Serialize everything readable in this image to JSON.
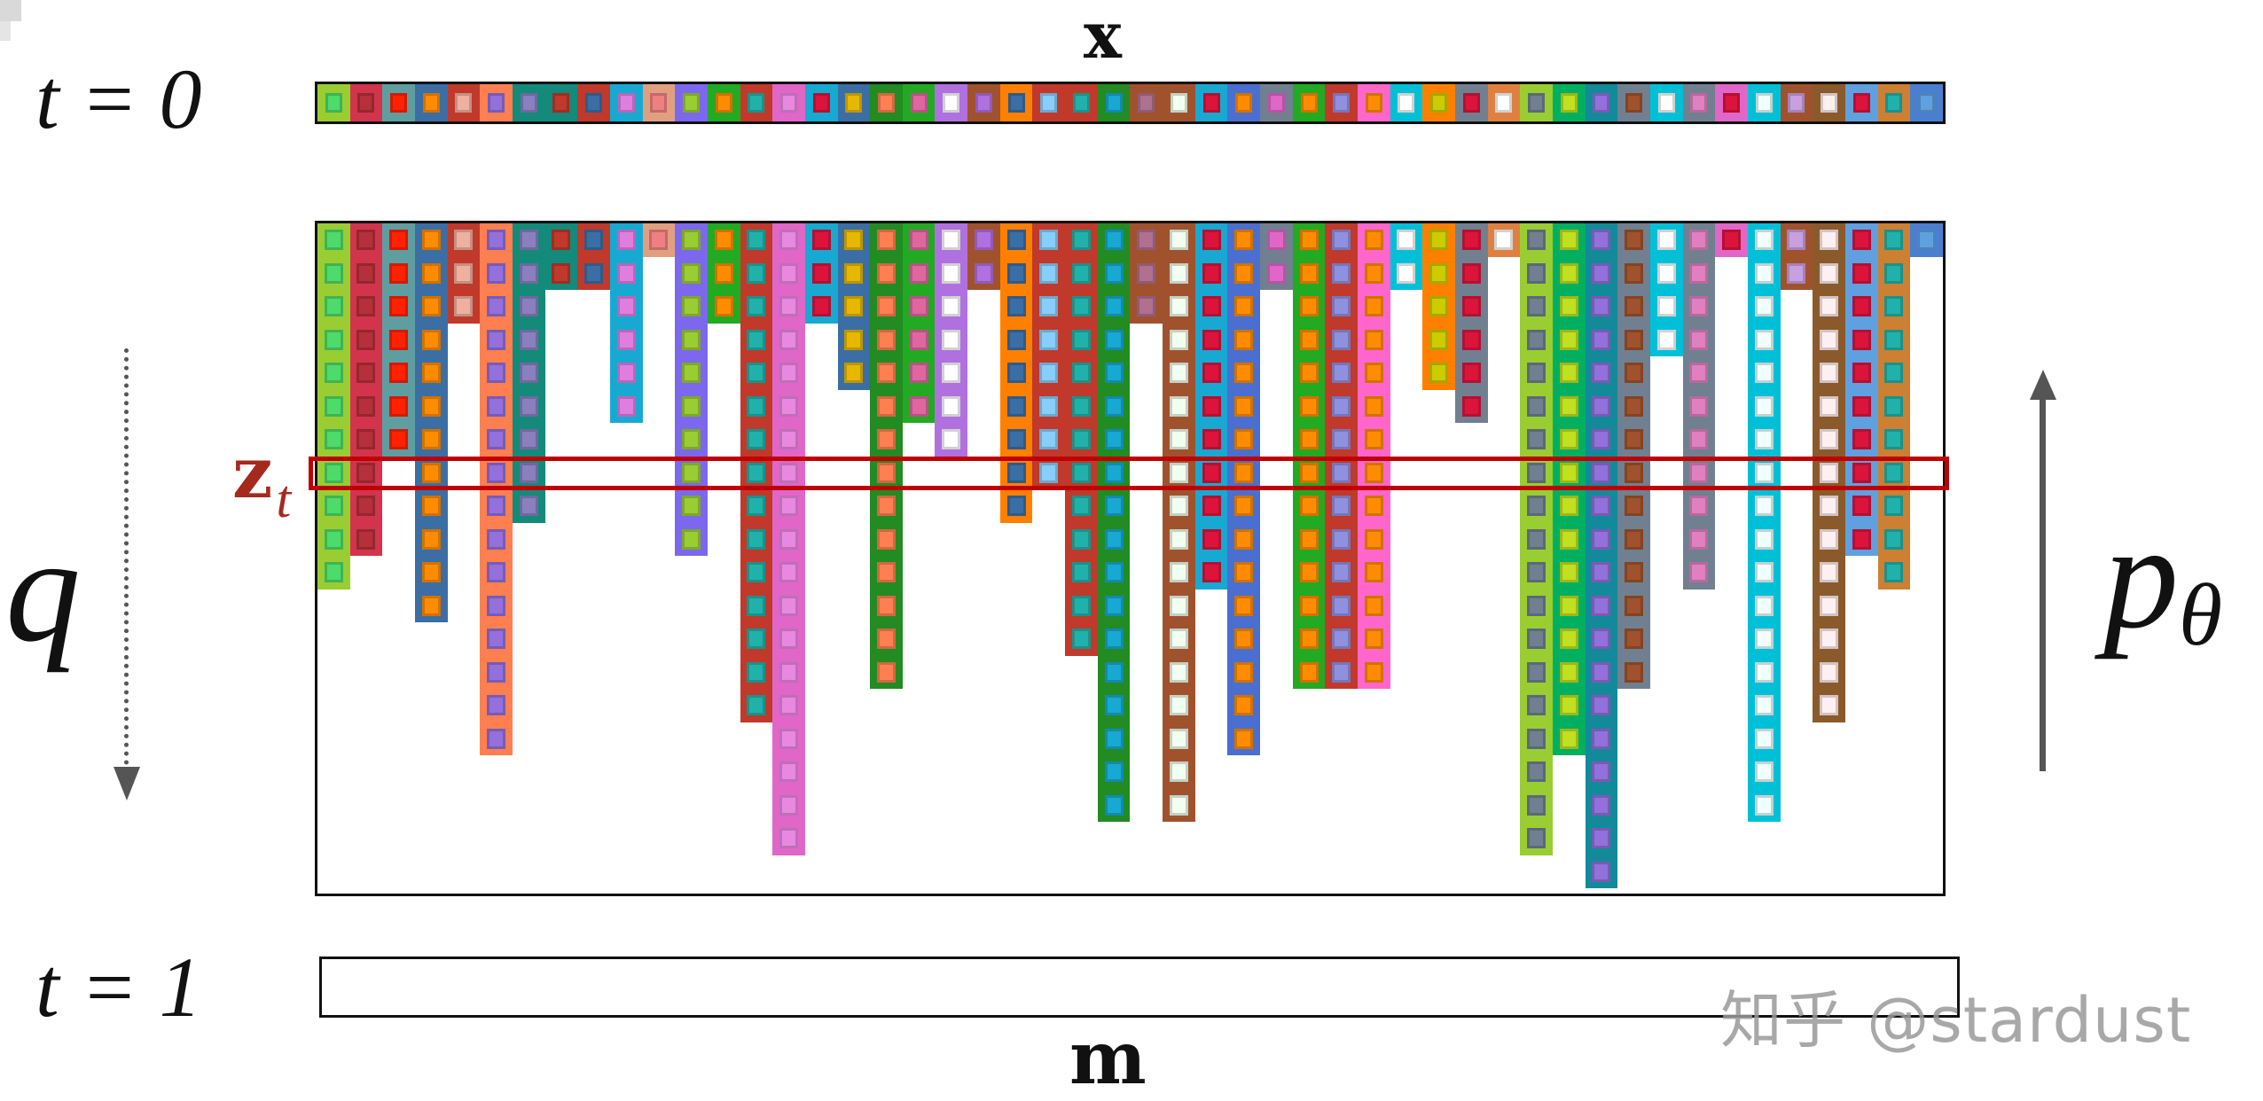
{
  "labels": {
    "x": "x",
    "t0": "t = 0",
    "t1": "t = 1",
    "m": "m",
    "zt_main": "z",
    "zt_sub": "t",
    "q": "q",
    "p_main": "p",
    "p_sub": "θ",
    "watermark": "知乎 @stardust"
  },
  "colors": {
    "highlight": "#c00000",
    "zt_label": "#a52a1e",
    "arrow": "#555555",
    "border": "#111111"
  },
  "grid": {
    "rows": 20,
    "highlight_row": 7,
    "columns": [
      {
        "h": 11,
        "bg": "#9acd32",
        "in": "#4ddb6a"
      },
      {
        "h": 10,
        "bg": "#d2344e",
        "in": "#b5303a"
      },
      {
        "h": 7,
        "bg": "#5f9ea0",
        "in": "#ff2200"
      },
      {
        "h": 12,
        "bg": "#3b6ea5",
        "in": "#ff8c00"
      },
      {
        "h": 3,
        "bg": "#c0392b",
        "in": "#f0b0a0"
      },
      {
        "h": 16,
        "bg": "#ff7f50",
        "in": "#9370db"
      },
      {
        "h": 9,
        "bg": "#138a7a",
        "in": "#8a7fbf"
      },
      {
        "h": 2,
        "bg": "#138a7a",
        "in": "#c0392b"
      },
      {
        "h": 2,
        "bg": "#c0392b",
        "in": "#3b6ea5"
      },
      {
        "h": 6,
        "bg": "#17a9d2",
        "in": "#e07ee0"
      },
      {
        "h": 1,
        "bg": "#e0a080",
        "in": "#f08080"
      },
      {
        "h": 10,
        "bg": "#7b68ee",
        "in": "#9acd32"
      },
      {
        "h": 3,
        "bg": "#22aa22",
        "in": "#ff8c00"
      },
      {
        "h": 15,
        "bg": "#c0392b",
        "in": "#20b2aa"
      },
      {
        "h": 19,
        "bg": "#e066c8",
        "in": "#e888e0"
      },
      {
        "h": 3,
        "bg": "#17a9d2",
        "in": "#dc143c"
      },
      {
        "h": 5,
        "bg": "#3b6ea5",
        "in": "#e6b800"
      },
      {
        "h": 14,
        "bg": "#228b22",
        "in": "#ff7f50"
      },
      {
        "h": 6,
        "bg": "#22aa22",
        "in": "#e066a0"
      },
      {
        "h": 7,
        "bg": "#b070e0",
        "in": "#ffffff"
      },
      {
        "h": 2,
        "bg": "#a0522d",
        "in": "#b070e0"
      },
      {
        "h": 9,
        "bg": "#ff8000",
        "in": "#3b6ea5"
      },
      {
        "h": 8,
        "bg": "#c0392b",
        "in": "#87cefa"
      },
      {
        "h": 13,
        "bg": "#c0392b",
        "in": "#20b2aa"
      },
      {
        "h": 18,
        "bg": "#228b22",
        "in": "#17a9d2"
      },
      {
        "h": 3,
        "bg": "#a0522d",
        "in": "#b07090"
      },
      {
        "h": 18,
        "bg": "#a0522d",
        "in": "#f0fff0"
      },
      {
        "h": 11,
        "bg": "#17a9d2",
        "in": "#dc143c"
      },
      {
        "h": 16,
        "bg": "#4a6fd0",
        "in": "#ff8c00"
      },
      {
        "h": 2,
        "bg": "#708090",
        "in": "#e066c8"
      },
      {
        "h": 14,
        "bg": "#22aa22",
        "in": "#ff8c00"
      },
      {
        "h": 14,
        "bg": "#c0392b",
        "in": "#9090e0"
      },
      {
        "h": 14,
        "bg": "#ff66cc",
        "in": "#ff8c00"
      },
      {
        "h": 2,
        "bg": "#00c0d8",
        "in": "#ffffff"
      },
      {
        "h": 5,
        "bg": "#ff8000",
        "in": "#cccc00"
      },
      {
        "h": 6,
        "bg": "#708090",
        "in": "#dc143c"
      },
      {
        "h": 1,
        "bg": "#e08040",
        "in": "#ffffff"
      },
      {
        "h": 19,
        "bg": "#9acd32",
        "in": "#708090"
      },
      {
        "h": 16,
        "bg": "#00b060",
        "in": "#c0e020"
      },
      {
        "h": 20,
        "bg": "#138a9a",
        "in": "#9370db"
      },
      {
        "h": 14,
        "bg": "#708090",
        "in": "#a0522d"
      },
      {
        "h": 4,
        "bg": "#00c0d8",
        "in": "#ffffff"
      },
      {
        "h": 11,
        "bg": "#708090",
        "in": "#e080c0"
      },
      {
        "h": 1,
        "bg": "#e066c8",
        "in": "#dc143c"
      },
      {
        "h": 18,
        "bg": "#00c0d8",
        "in": "#f0ffff"
      },
      {
        "h": 2,
        "bg": "#a0522d",
        "in": "#c8a0e0"
      },
      {
        "h": 15,
        "bg": "#8b5a2b",
        "in": "#fff0f0"
      },
      {
        "h": 10,
        "bg": "#5fa0e0",
        "in": "#dc143c"
      },
      {
        "h": 11,
        "bg": "#cd7f32",
        "in": "#20b2aa"
      },
      {
        "h": 1,
        "bg": "#4a7fd0",
        "in": "#5fa0e0"
      }
    ]
  }
}
